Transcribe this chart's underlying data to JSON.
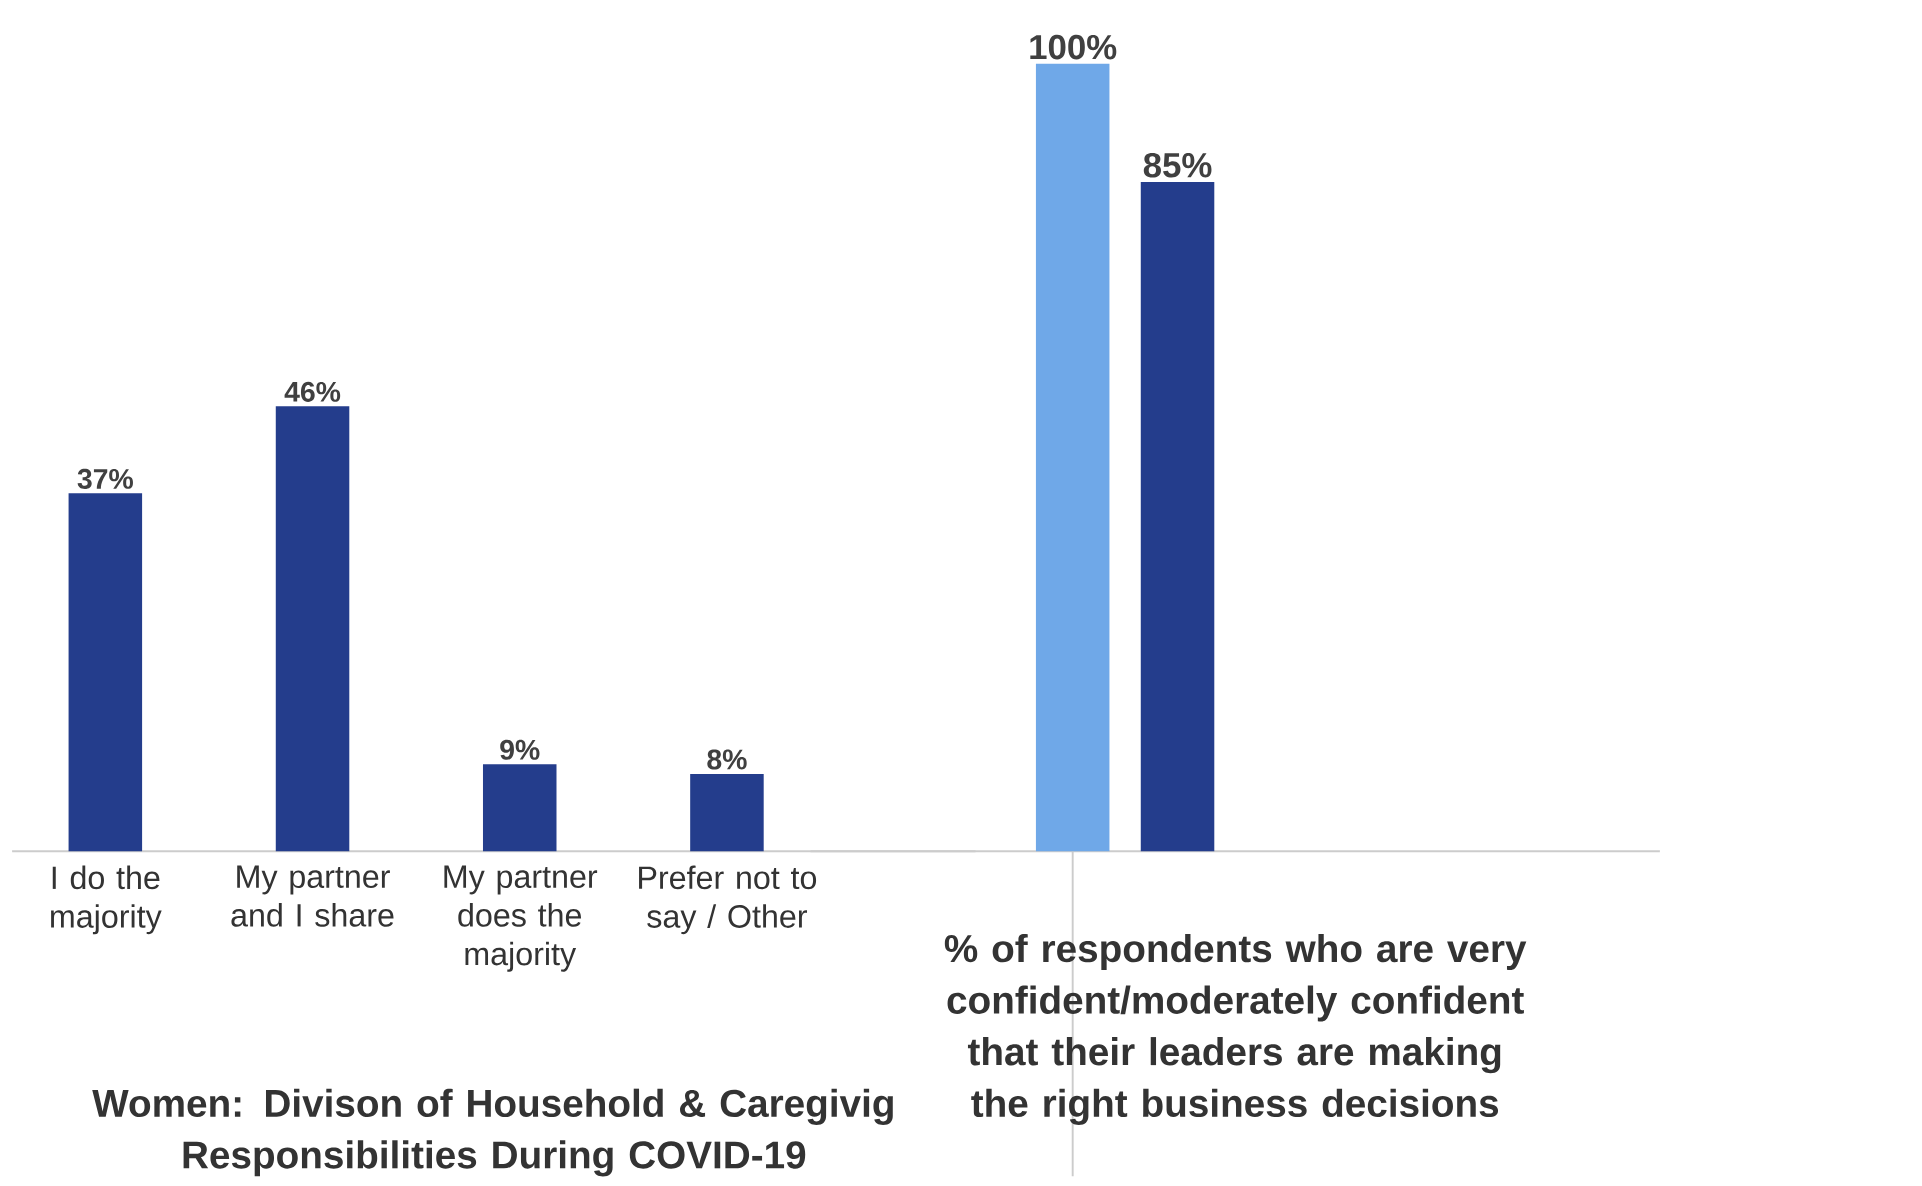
{
  "chart_data": [
    {
      "type": "bar",
      "title": "Women: Divison of Household & Caregivig Responsibilities During COVID-19",
      "categories": [
        "I do the majority",
        "My partner and I share",
        "My partner does the majority",
        "Prefer not to say / Other"
      ],
      "values": [
        37,
        46,
        9,
        8
      ],
      "value_labels": [
        "37%",
        "46%",
        "9%",
        "8%"
      ],
      "color": "#243d8c"
    },
    {
      "type": "bar",
      "title": "% of respondents who are very confident/moderately confident that their leaders are making the right business decisions",
      "categories": [
        null,
        null
      ],
      "values": [
        100,
        85
      ],
      "value_labels": [
        "100%",
        "85%"
      ],
      "colors": [
        "#6fa8e8",
        "#243d8c"
      ]
    }
  ]
}
